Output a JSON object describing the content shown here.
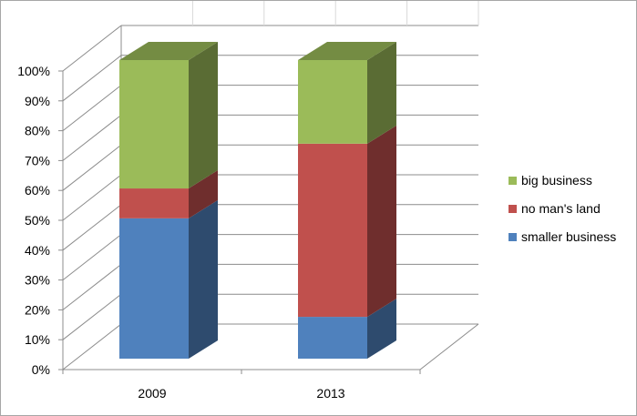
{
  "chart_data": {
    "type": "bar",
    "stacked": true,
    "percent": true,
    "three_d": true,
    "categories": [
      "2009",
      "2013"
    ],
    "series": [
      {
        "name": "smaller business",
        "values": [
          47,
          14
        ],
        "color": "#4f81bd"
      },
      {
        "name": "no man's land",
        "values": [
          10,
          58
        ],
        "color": "#c0504d"
      },
      {
        "name": "big business",
        "values": [
          43,
          28
        ],
        "color": "#9bbb59"
      }
    ],
    "y_ticks": [
      "0%",
      "10%",
      "20%",
      "30%",
      "40%",
      "50%",
      "60%",
      "70%",
      "80%",
      "90%",
      "100%"
    ],
    "ylim": [
      0,
      100
    ],
    "grid": true,
    "legend_position": "right"
  }
}
